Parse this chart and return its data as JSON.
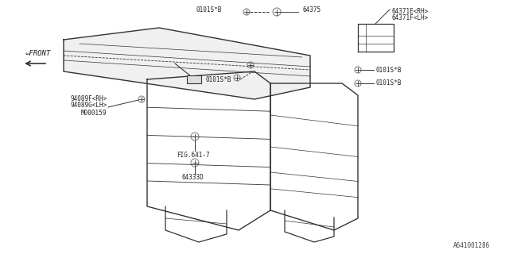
{
  "bg_color": "#ffffff",
  "line_color": "#333333",
  "label_color": "#333333",
  "title_ref": "A641001286",
  "labels": {
    "top_bolt_label": "0101S*B",
    "part_64375": "64375",
    "seat_back_label1": "94089F<RH>",
    "seat_back_label2": "94089G<LH>",
    "bolt_m000159": "M000159",
    "mid_bolt_label": "0101S*B",
    "right_bolt1": "0101S*B",
    "right_bolt2": "0101S*B",
    "bracket_label1": "64371E<RH>",
    "bracket_label2": "64371F<LH>",
    "fig_ref": "FIG.641-7",
    "bottom_bolt": "64333D",
    "front_arrow": "⇐FRONT"
  },
  "font_size_small": 6.5,
  "font_size_tiny": 5.5
}
